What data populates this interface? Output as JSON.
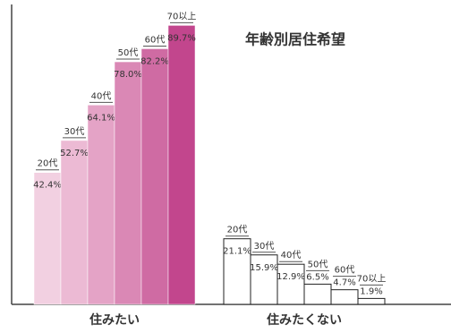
{
  "chart_data": {
    "type": "bar",
    "title": "年齢別居住希望",
    "categories": [
      "20代",
      "30代",
      "40代",
      "50代",
      "60代",
      "70以上"
    ],
    "series": [
      {
        "name": "住みたい",
        "colors": [
          "#f2d0e1",
          "#ecbad4",
          "#e4a3c6",
          "#da88b5",
          "#cf6ba3",
          "#c2468d"
        ],
        "values": [
          42.4,
          52.7,
          64.1,
          78.0,
          82.2,
          89.7
        ],
        "value_labels": [
          "42.4%",
          "52.7%",
          "64.1%",
          "78.0%",
          "82.2%",
          "89.7%"
        ]
      },
      {
        "name": "住みたくない",
        "colors": [
          "#ffffff",
          "#ffffff",
          "#ffffff",
          "#ffffff",
          "#ffffff",
          "#ffffff"
        ],
        "values": [
          21.1,
          15.9,
          12.9,
          6.5,
          4.7,
          1.9
        ],
        "value_labels": [
          "21.1%",
          "15.9%",
          "12.9%",
          "6.5%",
          "4.7%",
          "1.9%"
        ]
      }
    ],
    "ylim": [
      0,
      95
    ]
  }
}
